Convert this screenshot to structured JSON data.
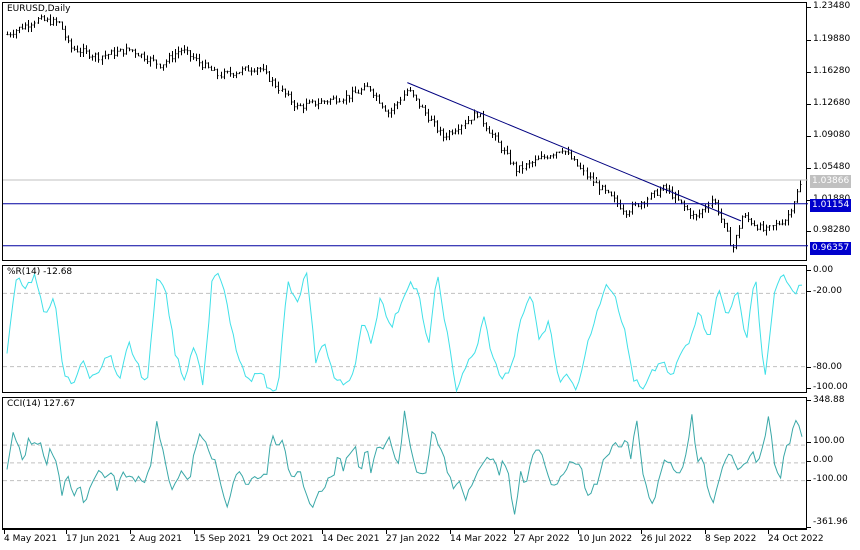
{
  "chart_data": [
    {
      "type": "bar",
      "subtype": "ohlc",
      "title": "EURUSD,Daily",
      "symbol": "EURUSD",
      "timeframe": "Daily",
      "ylim": [
        0.945,
        1.241
      ],
      "yticks": [
        "1.23480",
        "1.19880",
        "1.16280",
        "1.12680",
        "1.09080",
        "1.05480",
        "1.01880",
        "0.98280"
      ],
      "ytick_values": [
        1.2348,
        1.1988,
        1.1628,
        1.1268,
        1.0908,
        1.0548,
        1.0188,
        0.9828
      ],
      "price_tags": [
        {
          "label": "1.03866",
          "value": 1.03866,
          "color": "#c0c0c0",
          "type": "bid-line"
        },
        {
          "label": "1.01154",
          "value": 1.01154,
          "color": "#0000cc",
          "type": "horizontal-line"
        },
        {
          "label": "0.96357",
          "value": 0.96357,
          "color": "#0000cc",
          "type": "horizontal-line"
        }
      ],
      "trendline": {
        "from": {
          "date": "2022-02-10",
          "price": 1.15
        },
        "to": {
          "date": "2022-10-03",
          "price": 0.992
        },
        "color": "#000080"
      },
      "approx_close_path": [
        {
          "date": "2021-05-04",
          "close": 1.205
        },
        {
          "date": "2021-05-25",
          "close": 1.222
        },
        {
          "date": "2021-06-10",
          "close": 1.218
        },
        {
          "date": "2021-06-17",
          "close": 1.19
        },
        {
          "date": "2021-07-07",
          "close": 1.18
        },
        {
          "date": "2021-07-30",
          "close": 1.188
        },
        {
          "date": "2021-08-20",
          "close": 1.17
        },
        {
          "date": "2021-09-03",
          "close": 1.188
        },
        {
          "date": "2021-09-30",
          "close": 1.158
        },
        {
          "date": "2021-10-28",
          "close": 1.168
        },
        {
          "date": "2021-11-24",
          "close": 1.122
        },
        {
          "date": "2021-12-31",
          "close": 1.135
        },
        {
          "date": "2022-01-14",
          "close": 1.145
        },
        {
          "date": "2022-01-28",
          "close": 1.115
        },
        {
          "date": "2022-02-10",
          "close": 1.142
        },
        {
          "date": "2022-03-07",
          "close": 1.088
        },
        {
          "date": "2022-03-31",
          "close": 1.115
        },
        {
          "date": "2022-04-28",
          "close": 1.05
        },
        {
          "date": "2022-05-30",
          "close": 1.075
        },
        {
          "date": "2022-06-15",
          "close": 1.045
        },
        {
          "date": "2022-07-14",
          "close": 1.003
        },
        {
          "date": "2022-08-10",
          "close": 1.03
        },
        {
          "date": "2022-09-01",
          "close": 0.995
        },
        {
          "date": "2022-09-13",
          "close": 1.018
        },
        {
          "date": "2022-09-27",
          "close": 0.96
        },
        {
          "date": "2022-10-04",
          "close": 0.998
        },
        {
          "date": "2022-10-20",
          "close": 0.98
        },
        {
          "date": "2022-11-04",
          "close": 0.995
        },
        {
          "date": "2022-11-15",
          "close": 1.038
        }
      ]
    },
    {
      "type": "line",
      "title": "%R(14) -12.68",
      "indicator": "Williams %R",
      "period": 14,
      "last_value": -12.68,
      "ylim": [
        -100,
        0
      ],
      "yticks": [
        "0.00",
        "-20.00",
        "-80.00",
        "-100.00"
      ],
      "levels": [
        -20,
        -80
      ],
      "color": "#40e0e8",
      "approx_values": [
        -70,
        -5,
        -15,
        -5,
        -40,
        -20,
        -85,
        -95,
        -75,
        -90,
        -80,
        -70,
        -95,
        -60,
        -80,
        -95,
        -5,
        -20,
        -70,
        -90,
        -60,
        -95,
        -2,
        -10,
        -50,
        -80,
        -95,
        -80,
        -100,
        -95,
        -10,
        -30,
        -2,
        -75,
        -60,
        -90,
        -95,
        -85,
        -45,
        -60,
        -20,
        -50,
        -30,
        -10,
        -20,
        -65,
        -5,
        -50,
        -100,
        -80,
        -70,
        -40,
        -75,
        -90,
        -80,
        -40,
        -20,
        -60,
        -40,
        -95,
        -85,
        -100,
        -60,
        -40,
        -10,
        -20,
        -50,
        -90,
        -100,
        -85,
        -75,
        -90,
        -70,
        -60,
        -30,
        -60,
        -15,
        -40,
        -15,
        -60,
        -2,
        -95,
        -20,
        -5,
        -20,
        -12.68
      ]
    },
    {
      "type": "line",
      "title": "CCI(14) 127.67",
      "indicator": "Commodity Channel Index",
      "period": 14,
      "last_value": 127.67,
      "ylim": [
        -361.96,
        348.88
      ],
      "yticks": [
        "348.88",
        "100.00",
        "0.00",
        "-100.00",
        "-361.96"
      ],
      "levels": [
        100,
        0,
        -100
      ],
      "color": "#3aa8a8",
      "approx_values": [
        -50,
        160,
        120,
        -20,
        140,
        100,
        120,
        -20,
        100,
        -20,
        -170,
        -50,
        -180,
        -120,
        -250,
        -150,
        -80,
        -50,
        -100,
        -60,
        -150,
        -40,
        -80,
        -100,
        -60,
        -120,
        -20,
        240,
        100,
        -50,
        -150,
        -80,
        -50,
        -100,
        60,
        180,
        130,
        50,
        -30,
        -150,
        -250,
        -100,
        -50,
        -100,
        -120,
        -50,
        -100,
        -70,
        180,
        100,
        150,
        -30,
        -100,
        -50,
        -180,
        -250,
        -200,
        -150,
        -100,
        -80,
        30,
        -30,
        60,
        100,
        -50,
        100,
        -50,
        100,
        80,
        150,
        50,
        -20,
        300,
        100,
        -20,
        -80,
        -50,
        200,
        100,
        50,
        -80,
        -150,
        -100,
        -200,
        -120,
        -50,
        -30,
        20,
        50,
        -80,
        20,
        -100,
        -300,
        -50,
        -150,
        50,
        100,
        40,
        -60,
        -150,
        -100,
        -50,
        20,
        10,
        -20,
        -200,
        -150,
        -100,
        20,
        50,
        100,
        70,
        150,
        20,
        270,
        -20,
        -150,
        -250,
        -100,
        0,
        30,
        -40,
        -80,
        40,
        270,
        0,
        50,
        -150,
        -230,
        -80,
        20,
        70,
        -20,
        -50,
        0,
        60,
        -10,
        110,
        280,
        0,
        -100,
        100,
        130,
        270,
        127.67
      ]
    }
  ],
  "price_pane": {
    "title": "EURUSD,Daily",
    "yaxis": [
      "1.23480",
      "1.19880",
      "1.16280",
      "1.12680",
      "1.09080",
      "1.05480",
      "1.01880",
      "0.98280"
    ],
    "tags": {
      "bid": "1.03866",
      "level_upper": "1.01154",
      "level_lower": "0.96357"
    }
  },
  "wpr_pane": {
    "title": "%R(14) -12.68",
    "yaxis": [
      "0.00",
      "-20.00",
      "-80.00",
      "-100.00"
    ]
  },
  "cci_pane": {
    "title": "CCI(14) 127.67",
    "yaxis": [
      "348.88",
      "100.00",
      "0.00",
      "-100.00",
      "-361.96"
    ]
  },
  "xaxis": {
    "labels": [
      "4 May 2021",
      "17 Jun 2021",
      "2 Aug 2021",
      "15 Sep 2021",
      "29 Oct 2021",
      "14 Dec 2021",
      "27 Jan 2022",
      "14 Mar 2022",
      "27 Apr 2022",
      "10 Jun 2022",
      "26 Jul 2022",
      "8 Sep 2022",
      "24 Oct 2022"
    ]
  },
  "colors": {
    "bars": "#000000",
    "trendline": "#000080",
    "hlines": "#0000a0",
    "bid_line": "#c0c0c0",
    "wpr": "#40e0e8",
    "cci": "#3aa8a8",
    "level_grid": "#c0c0c0",
    "tag_blue": "#0000cc",
    "tag_gray": "#c0c0c0"
  }
}
